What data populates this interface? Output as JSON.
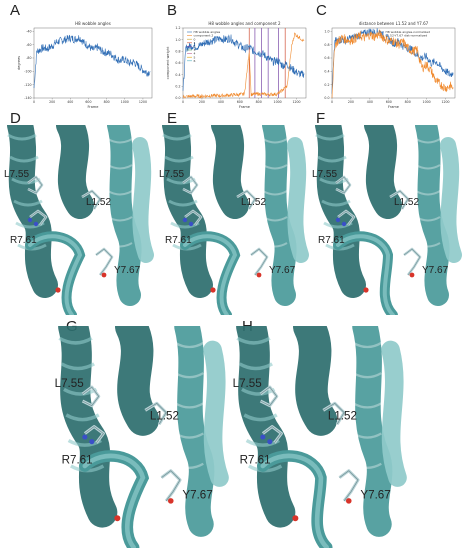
{
  "panel_letters": [
    "A",
    "B",
    "C",
    "D",
    "E",
    "F",
    "G",
    "H"
  ],
  "chart_data": [
    {
      "type": "line",
      "title": "H8 wobble angles",
      "xlabel": "Frame",
      "ylabel": "degrees",
      "xlim": [
        0,
        1300
      ],
      "ylim": [
        -140,
        -35
      ],
      "xticks": [
        0,
        200,
        400,
        600,
        800,
        1000,
        1200
      ],
      "yticks": [
        -140,
        -120,
        -100,
        -80,
        -60,
        -40
      ],
      "series": [
        {
          "name": "",
          "color": "#2f6db5",
          "x": [
            0,
            30,
            60,
            100,
            150,
            200,
            250,
            300,
            350,
            400,
            450,
            500,
            550,
            600,
            650,
            700,
            750,
            800,
            850,
            900,
            950,
            1000,
            1050,
            1100,
            1150,
            1200,
            1250,
            1280
          ],
          "values": [
            -125,
            -70,
            -68,
            -65,
            -66,
            -62,
            -56,
            -54,
            -52,
            -50,
            -52,
            -49,
            -57,
            -62,
            -68,
            -64,
            -70,
            -72,
            -74,
            -80,
            -84,
            -82,
            -88,
            -86,
            -92,
            -98,
            -102,
            -100
          ]
        }
      ]
    },
    {
      "type": "line",
      "title": "H8 wobble angles and component 2",
      "xlabel": "Frame",
      "ylabel": "component weight",
      "xlim": [
        0,
        1300
      ],
      "ylim": [
        0,
        1.2
      ],
      "xticks": [
        0,
        200,
        400,
        600,
        800,
        1000,
        1200
      ],
      "yticks": [
        0.0,
        0.2,
        0.4,
        0.6,
        0.8,
        1.0,
        1.2
      ],
      "legend": [
        "H8 wobble angles",
        "component 2",
        "0",
        "1",
        "2",
        "3",
        "4",
        "5",
        "6"
      ],
      "vlines": [
        {
          "x": 700,
          "color": "#d0533a"
        },
        {
          "x": 760,
          "color": "#7a4aa8"
        },
        {
          "x": 830,
          "color": "#7a4aa8"
        },
        {
          "x": 900,
          "color": "#7a4aa8"
        },
        {
          "x": 1010,
          "color": "#7a4aa8"
        },
        {
          "x": 1080,
          "color": "#d0533a"
        }
      ],
      "series": [
        {
          "name": "H8 wobble angles",
          "color": "#2f6db5",
          "x": [
            0,
            30,
            60,
            100,
            150,
            200,
            250,
            300,
            350,
            400,
            450,
            500,
            550,
            600,
            650,
            700,
            750,
            800,
            850,
            900,
            950,
            1000,
            1050,
            1100,
            1150,
            1200,
            1250,
            1280
          ],
          "values": [
            0.1,
            0.85,
            0.88,
            0.9,
            0.88,
            0.92,
            0.96,
            0.98,
            1.0,
            1.02,
            1.0,
            1.03,
            0.95,
            0.9,
            0.84,
            0.87,
            0.8,
            0.78,
            0.75,
            0.68,
            0.62,
            0.64,
            0.56,
            0.58,
            0.5,
            0.44,
            0.4,
            0.42
          ]
        },
        {
          "name": "component 2",
          "color": "#f08a2e",
          "x": [
            0,
            100,
            200,
            300,
            400,
            500,
            600,
            650,
            700,
            720,
            800,
            900,
            1000,
            1100,
            1150,
            1180,
            1220,
            1260,
            1280
          ],
          "values": [
            0.02,
            0.03,
            0.03,
            0.04,
            0.04,
            0.05,
            0.06,
            0.07,
            0.8,
            0.06,
            0.07,
            0.06,
            0.07,
            0.2,
            0.9,
            1.1,
            1.05,
            1.0,
            0.98
          ]
        }
      ]
    },
    {
      "type": "line",
      "title": "distance between L1.52 and Y7.67",
      "xlabel": "Frame",
      "ylabel": "",
      "xlim": [
        0,
        1300
      ],
      "ylim": [
        0,
        1.05
      ],
      "xticks": [
        0,
        200,
        400,
        600,
        800,
        1000,
        1200
      ],
      "yticks": [
        0.0,
        0.2,
        0.4,
        0.6,
        0.8,
        1.0
      ],
      "legend": [
        "H8 wobble angles-normalized",
        "L1.52-Y7.67 dist-normalized"
      ],
      "series": [
        {
          "name": "H8 wobble angles-normalized",
          "color": "#2f6db5",
          "x": [
            0,
            30,
            60,
            100,
            150,
            200,
            250,
            300,
            350,
            400,
            450,
            500,
            550,
            600,
            650,
            700,
            750,
            800,
            850,
            900,
            950,
            1000,
            1050,
            1100,
            1150,
            1200,
            1250,
            1280
          ],
          "values": [
            0.1,
            0.85,
            0.86,
            0.88,
            0.86,
            0.9,
            0.92,
            0.95,
            0.97,
            1.0,
            0.98,
            1.0,
            0.92,
            0.88,
            0.82,
            0.85,
            0.78,
            0.75,
            0.72,
            0.65,
            0.6,
            0.62,
            0.52,
            0.55,
            0.46,
            0.4,
            0.35,
            0.38
          ]
        },
        {
          "name": "L1.52-Y7.67 dist-normalized",
          "color": "#f08a2e",
          "x": [
            0,
            30,
            60,
            100,
            150,
            200,
            250,
            300,
            350,
            400,
            450,
            500,
            550,
            600,
            650,
            700,
            750,
            800,
            850,
            900,
            950,
            1000,
            1050,
            1100,
            1150,
            1200,
            1250,
            1280
          ],
          "values": [
            0.05,
            0.8,
            0.85,
            0.9,
            0.88,
            0.86,
            0.9,
            0.93,
            0.9,
            0.95,
            0.92,
            0.96,
            0.9,
            0.85,
            0.86,
            0.8,
            0.84,
            0.75,
            0.7,
            0.72,
            0.45,
            0.5,
            0.4,
            0.25,
            0.2,
            0.15,
            0.18,
            0.16
          ]
        }
      ]
    }
  ],
  "molecules": {
    "D": {
      "labels": [
        "L7.55",
        "L1.52",
        "R7.61",
        "Y7.67"
      ]
    },
    "E": {
      "labels": [
        "L7.55",
        "L1.52",
        "R7.61",
        "Y7.67"
      ]
    },
    "F": {
      "labels": [
        "L7.55",
        "L1.52",
        "R7.61",
        "Y7.67"
      ]
    },
    "G": {
      "labels": [
        "L7.55",
        "L1.52",
        "R7.61",
        "Y7.67"
      ]
    },
    "H": {
      "labels": [
        "L7.55",
        "L1.52",
        "R7.61",
        "Y7.67"
      ]
    }
  },
  "colors": {
    "helix_dark": "#2c6e6e",
    "helix_mid": "#4a9a9a",
    "helix_light": "#8fcaca",
    "stick": "#b9d3d6",
    "oxygen": "#d8342a",
    "nitrogen": "#3a4fc8"
  }
}
